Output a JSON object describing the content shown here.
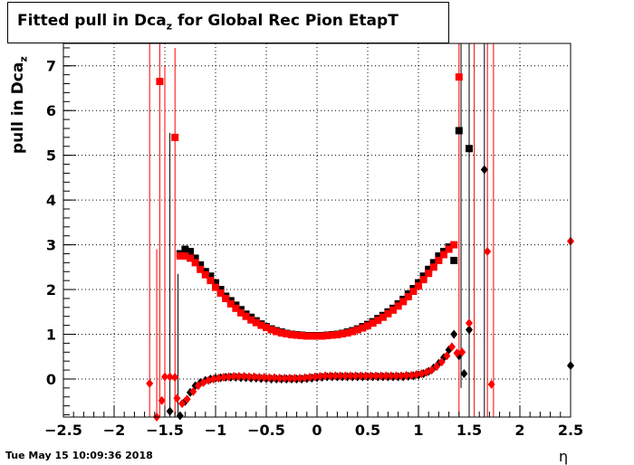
{
  "title_main": "Fitted pull in Dca",
  "title_sub": "z",
  "title_rest": " for Global Rec Pion EtapT",
  "ylabel_main": "pull in Dca",
  "ylabel_sub": "z",
  "xlabel": "η",
  "timestamp": "Tue May 15 10:09:36 2018",
  "chart_data": {
    "type": "scatter",
    "xlim": [
      -2.5,
      2.5
    ],
    "ylim": [
      -0.85,
      7.5
    ],
    "grid": true,
    "x_ticks": [
      -2.5,
      -2,
      -1.5,
      -1,
      -0.5,
      0,
      0.5,
      1,
      1.5,
      2,
      2.5
    ],
    "x_tick_labels": [
      "−2.5",
      "−2",
      "−1.5",
      "−1",
      "−0.5",
      "0",
      "0.5",
      "1",
      "1.5",
      "2",
      "2.5"
    ],
    "y_ticks": [
      0,
      1,
      2,
      3,
      4,
      5,
      6,
      7
    ],
    "y_tick_labels": [
      "0",
      "1",
      "2",
      "3",
      "4",
      "5",
      "6",
      "7"
    ],
    "colors": {
      "series_a": "#000000",
      "series_b": "#ff0000"
    },
    "series": [
      {
        "marker": "square",
        "color": "#000000",
        "points": [
          [
            -1.35,
            2.8
          ],
          [
            -1.3,
            2.9
          ],
          [
            -1.25,
            2.85
          ],
          [
            -1.2,
            2.7
          ],
          [
            -1.15,
            2.55
          ],
          [
            -1.1,
            2.4
          ],
          [
            -1.05,
            2.3
          ],
          [
            -1.0,
            2.15
          ],
          [
            -0.95,
            2.0
          ],
          [
            -0.9,
            1.85
          ],
          [
            -0.85,
            1.75
          ],
          [
            -0.8,
            1.65
          ],
          [
            -0.75,
            1.55
          ],
          [
            -0.7,
            1.45
          ],
          [
            -0.65,
            1.38
          ],
          [
            -0.6,
            1.3
          ],
          [
            -0.55,
            1.23
          ],
          [
            -0.5,
            1.17
          ],
          [
            -0.45,
            1.12
          ],
          [
            -0.4,
            1.08
          ],
          [
            -0.35,
            1.05
          ],
          [
            -0.3,
            1.02
          ],
          [
            -0.25,
            1.0
          ],
          [
            -0.2,
            0.99
          ],
          [
            -0.15,
            0.98
          ],
          [
            -0.1,
            0.97
          ],
          [
            -0.05,
            0.97
          ],
          [
            0.0,
            0.97
          ],
          [
            0.05,
            0.97
          ],
          [
            0.1,
            0.98
          ],
          [
            0.15,
            0.99
          ],
          [
            0.2,
            1.0
          ],
          [
            0.25,
            1.02
          ],
          [
            0.3,
            1.05
          ],
          [
            0.35,
            1.08
          ],
          [
            0.4,
            1.12
          ],
          [
            0.45,
            1.17
          ],
          [
            0.5,
            1.22
          ],
          [
            0.55,
            1.28
          ],
          [
            0.6,
            1.35
          ],
          [
            0.65,
            1.42
          ],
          [
            0.7,
            1.5
          ],
          [
            0.75,
            1.58
          ],
          [
            0.8,
            1.68
          ],
          [
            0.85,
            1.78
          ],
          [
            0.9,
            1.9
          ],
          [
            0.95,
            2.02
          ],
          [
            1.0,
            2.15
          ],
          [
            1.05,
            2.3
          ],
          [
            1.1,
            2.45
          ],
          [
            1.15,
            2.6
          ],
          [
            1.2,
            2.75
          ],
          [
            1.25,
            2.85
          ],
          [
            1.3,
            2.95
          ],
          [
            1.35,
            2.65
          ],
          [
            1.4,
            5.55
          ],
          [
            1.5,
            5.15
          ]
        ]
      },
      {
        "marker": "diamond",
        "color": "#000000",
        "points": [
          [
            -1.45,
            -0.72
          ],
          [
            -1.35,
            -0.82
          ],
          [
            -1.3,
            -0.5
          ],
          [
            -1.25,
            -0.3
          ],
          [
            -1.2,
            -0.15
          ],
          [
            -1.15,
            -0.08
          ],
          [
            -1.1,
            -0.03
          ],
          [
            -1.05,
            0.0
          ],
          [
            -1.0,
            0.02
          ],
          [
            -0.95,
            0.03
          ],
          [
            -0.9,
            0.04
          ],
          [
            -0.85,
            0.04
          ],
          [
            -0.8,
            0.04
          ],
          [
            -0.75,
            0.03
          ],
          [
            -0.7,
            0.03
          ],
          [
            -0.65,
            0.02
          ],
          [
            -0.6,
            0.02
          ],
          [
            -0.55,
            0.01
          ],
          [
            -0.5,
            0.01
          ],
          [
            -0.45,
            0.0
          ],
          [
            -0.4,
            0.0
          ],
          [
            -0.35,
            0.0
          ],
          [
            -0.3,
            0.0
          ],
          [
            -0.25,
            0.0
          ],
          [
            -0.2,
            0.0
          ],
          [
            -0.15,
            0.0
          ],
          [
            -0.1,
            0.01
          ],
          [
            -0.05,
            0.02
          ],
          [
            0.0,
            0.03
          ],
          [
            0.05,
            0.04
          ],
          [
            0.1,
            0.05
          ],
          [
            0.15,
            0.05
          ],
          [
            0.2,
            0.05
          ],
          [
            0.25,
            0.05
          ],
          [
            0.3,
            0.05
          ],
          [
            0.35,
            0.05
          ],
          [
            0.4,
            0.05
          ],
          [
            0.45,
            0.05
          ],
          [
            0.5,
            0.05
          ],
          [
            0.55,
            0.05
          ],
          [
            0.6,
            0.05
          ],
          [
            0.65,
            0.05
          ],
          [
            0.7,
            0.05
          ],
          [
            0.75,
            0.05
          ],
          [
            0.8,
            0.05
          ],
          [
            0.85,
            0.05
          ],
          [
            0.9,
            0.06
          ],
          [
            0.95,
            0.07
          ],
          [
            1.0,
            0.09
          ],
          [
            1.05,
            0.12
          ],
          [
            1.1,
            0.17
          ],
          [
            1.15,
            0.25
          ],
          [
            1.2,
            0.35
          ],
          [
            1.25,
            0.48
          ],
          [
            1.3,
            0.65
          ],
          [
            1.35,
            1.0
          ],
          [
            1.4,
            0.52
          ],
          [
            1.45,
            0.12
          ],
          [
            1.5,
            1.1
          ],
          [
            1.65,
            4.68
          ],
          [
            2.5,
            0.3
          ]
        ]
      },
      {
        "marker": "square",
        "color": "#ff0000",
        "points": [
          [
            -1.55,
            6.65
          ],
          [
            -1.4,
            5.4
          ],
          [
            -1.35,
            2.75
          ],
          [
            -1.3,
            2.75
          ],
          [
            -1.25,
            2.7
          ],
          [
            -1.2,
            2.6
          ],
          [
            -1.15,
            2.45
          ],
          [
            -1.1,
            2.33
          ],
          [
            -1.05,
            2.2
          ],
          [
            -1.0,
            2.05
          ],
          [
            -0.95,
            1.92
          ],
          [
            -0.9,
            1.8
          ],
          [
            -0.85,
            1.68
          ],
          [
            -0.8,
            1.58
          ],
          [
            -0.75,
            1.48
          ],
          [
            -0.7,
            1.4
          ],
          [
            -0.65,
            1.32
          ],
          [
            -0.6,
            1.26
          ],
          [
            -0.55,
            1.2
          ],
          [
            -0.5,
            1.15
          ],
          [
            -0.45,
            1.1
          ],
          [
            -0.4,
            1.06
          ],
          [
            -0.35,
            1.03
          ],
          [
            -0.3,
            1.01
          ],
          [
            -0.25,
            0.99
          ],
          [
            -0.2,
            0.98
          ],
          [
            -0.15,
            0.97
          ],
          [
            -0.1,
            0.96
          ],
          [
            -0.05,
            0.96
          ],
          [
            0.0,
            0.96
          ],
          [
            0.05,
            0.96
          ],
          [
            0.1,
            0.97
          ],
          [
            0.15,
            0.98
          ],
          [
            0.2,
            0.99
          ],
          [
            0.25,
            1.01
          ],
          [
            0.3,
            1.03
          ],
          [
            0.35,
            1.06
          ],
          [
            0.4,
            1.1
          ],
          [
            0.45,
            1.14
          ],
          [
            0.5,
            1.19
          ],
          [
            0.55,
            1.25
          ],
          [
            0.6,
            1.31
          ],
          [
            0.65,
            1.38
          ],
          [
            0.7,
            1.46
          ],
          [
            0.75,
            1.54
          ],
          [
            0.8,
            1.63
          ],
          [
            0.85,
            1.73
          ],
          [
            0.9,
            1.84
          ],
          [
            0.95,
            1.96
          ],
          [
            1.0,
            2.08
          ],
          [
            1.05,
            2.22
          ],
          [
            1.1,
            2.36
          ],
          [
            1.15,
            2.5
          ],
          [
            1.2,
            2.65
          ],
          [
            1.25,
            2.78
          ],
          [
            1.3,
            2.9
          ],
          [
            1.35,
            3.0
          ],
          [
            1.4,
            6.75
          ]
        ]
      },
      {
        "marker": "diamond",
        "color": "#ff0000",
        "points": [
          [
            -1.65,
            -0.1
          ],
          [
            -1.58,
            -0.85
          ],
          [
            -1.53,
            -0.48
          ],
          [
            -1.5,
            0.05
          ],
          [
            -1.45,
            0.05
          ],
          [
            -1.4,
            0.04
          ],
          [
            -1.38,
            -0.43
          ],
          [
            -1.33,
            -0.55
          ],
          [
            -1.28,
            -0.45
          ],
          [
            -1.22,
            -0.28
          ],
          [
            -1.17,
            -0.15
          ],
          [
            -1.12,
            -0.08
          ],
          [
            -1.07,
            -0.03
          ],
          [
            -1.02,
            0.0
          ],
          [
            -0.97,
            0.02
          ],
          [
            -0.92,
            0.04
          ],
          [
            -0.87,
            0.05
          ],
          [
            -0.82,
            0.06
          ],
          [
            -0.77,
            0.06
          ],
          [
            -0.72,
            0.06
          ],
          [
            -0.67,
            0.05
          ],
          [
            -0.62,
            0.05
          ],
          [
            -0.57,
            0.04
          ],
          [
            -0.52,
            0.04
          ],
          [
            -0.47,
            0.03
          ],
          [
            -0.42,
            0.03
          ],
          [
            -0.37,
            0.02
          ],
          [
            -0.32,
            0.02
          ],
          [
            -0.27,
            0.02
          ],
          [
            -0.22,
            0.02
          ],
          [
            -0.17,
            0.02
          ],
          [
            -0.12,
            0.03
          ],
          [
            -0.07,
            0.04
          ],
          [
            -0.02,
            0.05
          ],
          [
            0.03,
            0.06
          ],
          [
            0.08,
            0.07
          ],
          [
            0.13,
            0.07
          ],
          [
            0.18,
            0.07
          ],
          [
            0.23,
            0.07
          ],
          [
            0.28,
            0.07
          ],
          [
            0.33,
            0.07
          ],
          [
            0.38,
            0.07
          ],
          [
            0.43,
            0.07
          ],
          [
            0.48,
            0.07
          ],
          [
            0.53,
            0.07
          ],
          [
            0.58,
            0.07
          ],
          [
            0.63,
            0.07
          ],
          [
            0.68,
            0.07
          ],
          [
            0.73,
            0.07
          ],
          [
            0.78,
            0.07
          ],
          [
            0.83,
            0.07
          ],
          [
            0.88,
            0.08
          ],
          [
            0.93,
            0.08
          ],
          [
            0.98,
            0.1
          ],
          [
            1.03,
            0.12
          ],
          [
            1.08,
            0.15
          ],
          [
            1.13,
            0.2
          ],
          [
            1.18,
            0.28
          ],
          [
            1.23,
            0.38
          ],
          [
            1.28,
            0.52
          ],
          [
            1.33,
            0.72
          ],
          [
            1.38,
            0.58
          ],
          [
            1.43,
            0.6
          ],
          [
            1.5,
            1.25
          ],
          [
            1.68,
            2.85
          ],
          [
            1.72,
            -0.12
          ],
          [
            2.5,
            3.08
          ]
        ]
      }
    ],
    "error_bars": [
      {
        "x": -1.65,
        "y_low": -0.85,
        "y_high": 7.5,
        "color": "#ff0000"
      },
      {
        "x": -1.58,
        "y_low": -0.85,
        "y_high": 2.9,
        "color": "#ff0000"
      },
      {
        "x": -1.55,
        "y_low": -0.85,
        "y_high": 7.5,
        "color": "#ff0000"
      },
      {
        "x": -1.5,
        "y_low": -0.85,
        "y_high": 7.0,
        "color": "#ff0000"
      },
      {
        "x": -1.45,
        "y_low": -0.85,
        "y_high": 5.5,
        "color": "#000000"
      },
      {
        "x": -1.4,
        "y_low": -0.85,
        "y_high": 7.4,
        "color": "#ff0000"
      },
      {
        "x": -1.37,
        "y_low": -0.85,
        "y_high": 2.35,
        "color": "#000000"
      },
      {
        "x": 1.4,
        "y_low": -0.85,
        "y_high": 7.5,
        "color": "#ff0000"
      },
      {
        "x": 1.42,
        "y_low": -0.2,
        "y_high": 7.5,
        "color": "#000000"
      },
      {
        "x": 1.5,
        "y_low": -0.85,
        "y_high": 7.5,
        "color": "#000000"
      },
      {
        "x": 1.55,
        "y_low": -0.85,
        "y_high": 7.5,
        "color": "#ff0000"
      },
      {
        "x": 1.65,
        "y_low": -0.85,
        "y_high": 7.5,
        "color": "#000000"
      },
      {
        "x": 1.68,
        "y_low": -0.85,
        "y_high": 7.5,
        "color": "#ff0000"
      },
      {
        "x": 1.74,
        "y_low": -0.85,
        "y_high": 7.5,
        "color": "#ff0000"
      },
      {
        "x": 2.5,
        "y_low": -0.85,
        "y_high": 7.5,
        "color": "#ff0000"
      }
    ]
  }
}
